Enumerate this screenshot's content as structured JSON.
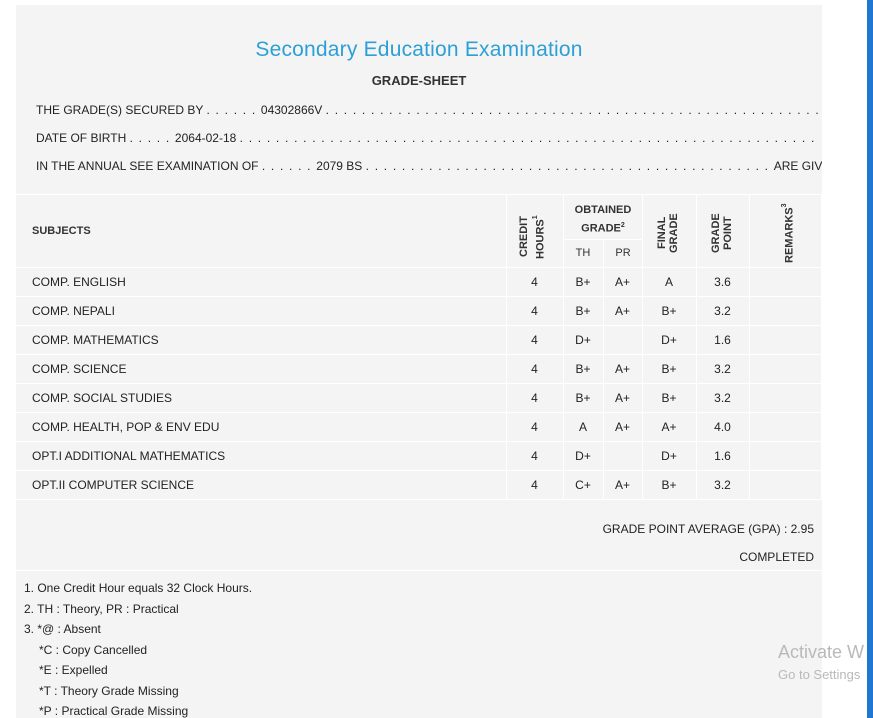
{
  "title": "Secondary Education Examination",
  "subtitle": "GRADE-SHEET",
  "info": {
    "secured_by_label": "THE GRADE(S) SECURED BY",
    "secured_by_value": "04302866V",
    "dob_label": "DATE OF BIRTH",
    "dob_value": "2064-02-18",
    "exam_label": "IN THE ANNUAL SEE EXAMINATION OF",
    "exam_value": "2079 BS",
    "exam_suffix": "ARE GIVEN BELOW . . ."
  },
  "table": {
    "headers": {
      "subjects": "SUBJECTS",
      "credit_hours_1": "CREDIT",
      "credit_hours_2": "HOURS",
      "credit_sup": "1",
      "obtained_1": "OBTAINED",
      "obtained_2": "GRADE",
      "obtained_sup": "2",
      "th": "TH",
      "pr": "PR",
      "final_1": "FINAL",
      "final_2": "GRADE",
      "point_1": "GRADE",
      "point_2": "POINT",
      "remarks": "REMARKS",
      "remarks_sup": "3"
    },
    "rows": [
      {
        "subject": "COMP. ENGLISH",
        "credit": "4",
        "th": "B+",
        "pr": "A+",
        "final": "A",
        "point": "3.6",
        "remarks": ""
      },
      {
        "subject": "COMP. NEPALI",
        "credit": "4",
        "th": "B+",
        "pr": "A+",
        "final": "B+",
        "point": "3.2",
        "remarks": ""
      },
      {
        "subject": "COMP. MATHEMATICS",
        "credit": "4",
        "th": "D+",
        "pr": "",
        "final": "D+",
        "point": "1.6",
        "remarks": ""
      },
      {
        "subject": "COMP. SCIENCE",
        "credit": "4",
        "th": "B+",
        "pr": "A+",
        "final": "B+",
        "point": "3.2",
        "remarks": ""
      },
      {
        "subject": "COMP. SOCIAL STUDIES",
        "credit": "4",
        "th": "B+",
        "pr": "A+",
        "final": "B+",
        "point": "3.2",
        "remarks": ""
      },
      {
        "subject": "COMP. HEALTH, POP & ENV EDU",
        "credit": "4",
        "th": "A",
        "pr": "A+",
        "final": "A+",
        "point": "4.0",
        "remarks": ""
      },
      {
        "subject": "OPT.I ADDITIONAL MATHEMATICS",
        "credit": "4",
        "th": "D+",
        "pr": "",
        "final": "D+",
        "point": "1.6",
        "remarks": ""
      },
      {
        "subject": "OPT.II COMPUTER SCIENCE",
        "credit": "4",
        "th": "C+",
        "pr": "A+",
        "final": "B+",
        "point": "3.2",
        "remarks": ""
      }
    ]
  },
  "gpa": "GRADE POINT AVERAGE (GPA) : 2.95",
  "status": "COMPLETED",
  "notes": [
    "1. One Credit Hour equals 32 Clock Hours.",
    "2. TH : Theory, PR : Practical",
    "3. *@ : Absent",
    "*C : Copy Cancelled",
    "*E : Expelled",
    "*T : Theory Grade Missing",
    "*P : Practical Grade Missing"
  ],
  "watermark": {
    "line1": "Activate W",
    "line2": "Go to Settings"
  },
  "colors": {
    "title": "#2ca0d6",
    "scrollbar": "#1f77d1",
    "sheet_bg": "#f4f4f4"
  }
}
